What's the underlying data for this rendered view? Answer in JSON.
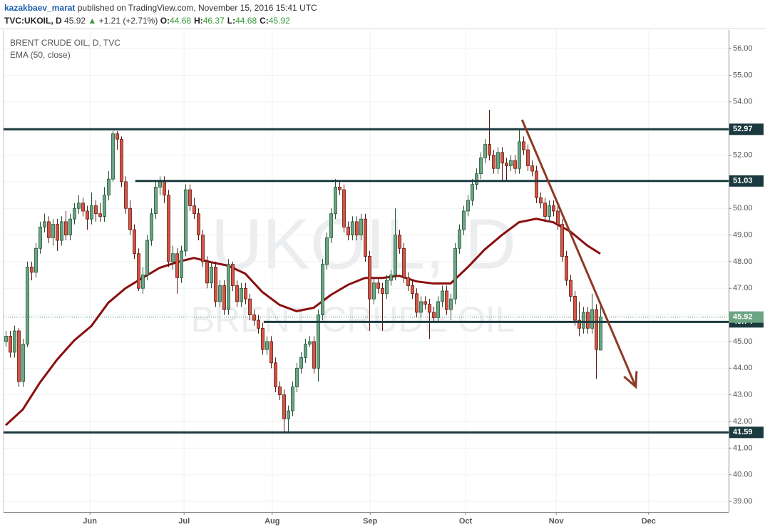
{
  "header": {
    "user": "kazakbaev_marat",
    "published": "published on TradingView.com, November 15, 2016 15:41 UTC",
    "symbol": "TVC:UKOIL, D",
    "price": "45.92",
    "change": "+1.21 (+2.71%)",
    "ohlc": [
      {
        "label": "O:",
        "value": "44.68"
      },
      {
        "label": "H:",
        "value": "46.37"
      },
      {
        "label": "L:",
        "value": "44.68"
      },
      {
        "label": "C:",
        "value": "45.92"
      }
    ]
  },
  "chart_data": {
    "type": "candlestick",
    "title": "BRENT CRUDE OIL, D, TVC",
    "watermark": "UKOIL, D",
    "watermark_subtitle": "BRENT CRUDE OIL",
    "up_color": "#6ba583",
    "down_color": "#d75442",
    "xlim": [
      -0.5,
      169
    ],
    "ylim": [
      38.6,
      56.7
    ],
    "grid": true,
    "xticks": [
      {
        "value": 19.7,
        "label": "Jun"
      },
      {
        "value": 41.7,
        "label": "Jul"
      },
      {
        "value": 62.3,
        "label": "Aug"
      },
      {
        "value": 85.2,
        "label": "Sep"
      },
      {
        "value": 107.5,
        "label": "Oct"
      },
      {
        "value": 128.7,
        "label": "Nov"
      },
      {
        "value": 150.3,
        "label": "Dec"
      }
    ],
    "yticks": [
      {
        "value": 39,
        "label": "39.00"
      },
      {
        "value": 40,
        "label": "40.00"
      },
      {
        "value": 41,
        "label": "41.00"
      },
      {
        "value": 42,
        "label": "42.00"
      },
      {
        "value": 43,
        "label": "43.00"
      },
      {
        "value": 44,
        "label": "44.00"
      },
      {
        "value": 45,
        "label": "45.00"
      },
      {
        "value": 46,
        "label": "46.00"
      },
      {
        "value": 47,
        "label": "47.00"
      },
      {
        "value": 48,
        "label": "48.00"
      },
      {
        "value": 49,
        "label": "49.00"
      },
      {
        "value": 50,
        "label": "50.00"
      },
      {
        "value": 51,
        "label": "51.00"
      },
      {
        "value": 52,
        "label": "52.00"
      },
      {
        "value": 53,
        "label": "53.00"
      },
      {
        "value": 54,
        "label": "54.00"
      },
      {
        "value": 55,
        "label": "55.00"
      },
      {
        "value": 56,
        "label": "56.00"
      }
    ],
    "candles": [
      [
        45.0,
        45.4,
        44.8,
        45.2
      ],
      [
        45.2,
        45.4,
        44.4,
        44.6
      ],
      [
        44.6,
        45.6,
        44.4,
        45.4
      ],
      [
        45.4,
        45.5,
        43.3,
        43.5
      ],
      [
        43.5,
        45.1,
        43.3,
        44.9
      ],
      [
        44.9,
        48.0,
        44.8,
        47.8
      ],
      [
        47.8,
        48.0,
        47.3,
        47.6
      ],
      [
        47.6,
        48.7,
        47.4,
        48.5
      ],
      [
        48.5,
        49.5,
        48.3,
        49.3
      ],
      [
        49.3,
        49.8,
        49.1,
        49.5
      ],
      [
        49.5,
        49.7,
        48.7,
        48.9
      ],
      [
        48.9,
        49.6,
        48.6,
        49.4
      ],
      [
        49.4,
        49.6,
        48.4,
        48.8
      ],
      [
        48.8,
        49.7,
        48.6,
        49.5
      ],
      [
        49.5,
        49.9,
        48.8,
        49.0
      ],
      [
        49.0,
        49.8,
        48.8,
        49.6
      ],
      [
        49.6,
        50.2,
        49.4,
        50.0
      ],
      [
        50.0,
        50.5,
        49.8,
        50.2
      ],
      [
        50.2,
        50.4,
        49.7,
        49.9
      ],
      [
        49.9,
        50.1,
        49.2,
        49.6
      ],
      [
        49.6,
        50.6,
        49.4,
        50.1
      ],
      [
        50.1,
        50.3,
        49.5,
        49.8
      ],
      [
        49.8,
        50.2,
        49.5,
        49.7
      ],
      [
        49.7,
        50.8,
        49.5,
        50.5
      ],
      [
        50.5,
        51.4,
        50.3,
        51.1
      ],
      [
        51.1,
        52.9,
        51.0,
        52.8
      ],
      [
        52.8,
        52.9,
        52.2,
        52.6
      ],
      [
        52.6,
        52.7,
        50.8,
        51.0
      ],
      [
        51.0,
        51.2,
        49.8,
        50.0
      ],
      [
        50.0,
        50.3,
        49.0,
        49.2
      ],
      [
        49.2,
        49.4,
        48.1,
        48.3
      ],
      [
        48.3,
        48.5,
        46.9,
        47.0
      ],
      [
        47.0,
        47.8,
        46.8,
        47.5
      ],
      [
        47.5,
        49.0,
        47.3,
        48.8
      ],
      [
        48.8,
        50.0,
        48.6,
        49.8
      ],
      [
        49.8,
        51.0,
        49.6,
        50.8
      ],
      [
        50.8,
        51.2,
        50.5,
        51.0
      ],
      [
        51.0,
        51.2,
        50.2,
        50.5
      ],
      [
        50.5,
        50.7,
        47.8,
        48.0
      ],
      [
        48.0,
        48.6,
        47.7,
        48.3
      ],
      [
        48.3,
        48.5,
        46.8,
        47.4
      ],
      [
        47.4,
        48.6,
        47.2,
        48.4
      ],
      [
        48.4,
        50.9,
        48.2,
        50.7
      ],
      [
        50.7,
        50.9,
        49.9,
        50.1
      ],
      [
        50.1,
        50.4,
        49.6,
        49.8
      ],
      [
        49.8,
        50.0,
        48.8,
        49.0
      ],
      [
        49.0,
        49.2,
        47.8,
        48.0
      ],
      [
        48.0,
        48.2,
        47.0,
        47.2
      ],
      [
        47.2,
        48.0,
        47.0,
        47.8
      ],
      [
        47.8,
        48.0,
        46.3,
        46.5
      ],
      [
        46.5,
        47.3,
        46.3,
        47.1
      ],
      [
        47.1,
        47.3,
        46.0,
        46.2
      ],
      [
        46.2,
        48.1,
        46.0,
        47.9
      ],
      [
        47.9,
        48.0,
        46.9,
        47.1
      ],
      [
        47.1,
        47.3,
        46.3,
        46.5
      ],
      [
        46.5,
        47.2,
        46.3,
        47.0
      ],
      [
        47.0,
        47.2,
        46.4,
        46.6
      ],
      [
        46.6,
        46.8,
        45.8,
        46.0
      ],
      [
        46.0,
        46.2,
        45.6,
        45.8
      ],
      [
        45.8,
        46.0,
        45.3,
        45.5
      ],
      [
        45.5,
        45.7,
        44.5,
        44.7
      ],
      [
        44.7,
        45.2,
        44.5,
        45.0
      ],
      [
        45.0,
        45.2,
        44.0,
        44.2
      ],
      [
        44.2,
        44.4,
        43.1,
        43.3
      ],
      [
        43.3,
        43.5,
        42.8,
        43.0
      ],
      [
        43.0,
        43.2,
        41.6,
        42.1
      ],
      [
        42.1,
        42.6,
        41.6,
        42.4
      ],
      [
        42.4,
        43.5,
        42.2,
        43.3
      ],
      [
        43.3,
        44.2,
        43.1,
        44.0
      ],
      [
        44.0,
        44.6,
        43.8,
        44.4
      ],
      [
        44.4,
        45.1,
        44.2,
        44.9
      ],
      [
        44.9,
        45.2,
        44.8,
        45.0
      ],
      [
        45.0,
        45.2,
        43.8,
        44.0
      ],
      [
        44.0,
        46.2,
        43.5,
        46.0
      ],
      [
        46.0,
        48.1,
        45.8,
        47.9
      ],
      [
        47.9,
        49.1,
        47.7,
        48.9
      ],
      [
        48.9,
        50.0,
        48.7,
        49.8
      ],
      [
        49.8,
        51.1,
        49.6,
        50.8
      ],
      [
        50.8,
        51.0,
        50.5,
        50.7
      ],
      [
        50.7,
        50.9,
        49.1,
        49.3
      ],
      [
        49.3,
        49.5,
        48.8,
        49.0
      ],
      [
        49.0,
        49.7,
        48.8,
        49.5
      ],
      [
        49.5,
        49.7,
        48.8,
        49.0
      ],
      [
        49.0,
        49.8,
        48.8,
        49.6
      ],
      [
        49.6,
        49.8,
        48.0,
        48.2
      ],
      [
        48.2,
        48.4,
        45.4,
        46.6
      ],
      [
        46.6,
        47.4,
        46.4,
        47.2
      ],
      [
        47.2,
        47.4,
        46.8,
        47.0
      ],
      [
        47.0,
        47.2,
        45.4,
        46.8
      ],
      [
        46.8,
        47.5,
        46.6,
        47.3
      ],
      [
        47.3,
        47.7,
        47.1,
        47.5
      ],
      [
        47.5,
        50.0,
        47.3,
        49.0
      ],
      [
        49.0,
        49.2,
        48.3,
        48.5
      ],
      [
        48.5,
        48.7,
        47.2,
        47.4
      ],
      [
        47.4,
        47.6,
        46.9,
        47.1
      ],
      [
        47.1,
        47.3,
        46.6,
        46.8
      ],
      [
        46.8,
        47.0,
        45.9,
        46.1
      ],
      [
        46.1,
        46.7,
        45.9,
        46.5
      ],
      [
        46.5,
        46.7,
        46.2,
        46.4
      ],
      [
        46.4,
        46.6,
        45.1,
        46.1
      ],
      [
        46.1,
        46.3,
        45.7,
        45.9
      ],
      [
        45.9,
        46.7,
        45.7,
        46.5
      ],
      [
        46.5,
        47.1,
        46.3,
        46.9
      ],
      [
        46.9,
        47.1,
        46.0,
        46.2
      ],
      [
        46.2,
        46.8,
        45.8,
        46.6
      ],
      [
        46.6,
        48.7,
        46.4,
        48.5
      ],
      [
        48.5,
        49.4,
        48.3,
        49.2
      ],
      [
        49.2,
        50.1,
        49.0,
        49.9
      ],
      [
        49.9,
        50.5,
        49.7,
        50.3
      ],
      [
        50.3,
        51.1,
        50.1,
        50.9
      ],
      [
        50.9,
        51.5,
        50.7,
        51.3
      ],
      [
        51.3,
        52.1,
        51.1,
        51.9
      ],
      [
        51.9,
        52.6,
        51.7,
        52.4
      ],
      [
        52.4,
        53.7,
        51.8,
        52.0
      ],
      [
        52.0,
        52.2,
        51.3,
        51.5
      ],
      [
        51.5,
        52.3,
        51.3,
        52.1
      ],
      [
        52.1,
        52.3,
        51.0,
        51.7
      ],
      [
        51.7,
        51.9,
        51.0,
        51.6
      ],
      [
        51.6,
        52.0,
        51.4,
        51.8
      ],
      [
        51.8,
        52.0,
        51.3,
        51.5
      ],
      [
        51.5,
        53.0,
        51.3,
        52.5
      ],
      [
        52.5,
        52.7,
        52.0,
        52.2
      ],
      [
        52.2,
        52.4,
        51.4,
        51.6
      ],
      [
        51.6,
        51.8,
        51.2,
        51.4
      ],
      [
        51.4,
        51.6,
        50.2,
        50.4
      ],
      [
        50.4,
        50.6,
        50.0,
        50.2
      ],
      [
        50.2,
        50.4,
        49.5,
        49.7
      ],
      [
        49.7,
        50.3,
        49.5,
        50.1
      ],
      [
        50.1,
        50.3,
        49.7,
        49.9
      ],
      [
        49.9,
        50.1,
        49.2,
        49.4
      ],
      [
        49.4,
        49.6,
        48.0,
        48.2
      ],
      [
        48.2,
        48.4,
        47.1,
        47.3
      ],
      [
        47.3,
        47.5,
        46.5,
        46.7
      ],
      [
        46.7,
        46.9,
        45.6,
        45.8
      ],
      [
        45.8,
        46.5,
        45.2,
        45.5
      ],
      [
        45.5,
        46.3,
        45.3,
        46.1
      ],
      [
        46.1,
        46.3,
        45.3,
        45.5
      ],
      [
        45.5,
        46.8,
        45.3,
        46.2
      ],
      [
        46.2,
        46.4,
        43.6,
        44.7
      ],
      [
        44.68,
        46.37,
        44.68,
        45.92
      ]
    ],
    "ema": {
      "name": "EMA (50, close)",
      "color": "#8b0f0f",
      "x": [
        0,
        4,
        8,
        12,
        16,
        20,
        24,
        28,
        32,
        36,
        40,
        44,
        48,
        52,
        56,
        60,
        64,
        68,
        72,
        76,
        80,
        84,
        88,
        92,
        96,
        100,
        104,
        108,
        112,
        116,
        120,
        124,
        128,
        132,
        136,
        139
      ],
      "values": [
        41.86,
        42.45,
        43.46,
        44.32,
        45.04,
        45.58,
        46.46,
        47.0,
        47.39,
        47.77,
        47.98,
        48.14,
        47.98,
        47.85,
        47.55,
        46.86,
        46.38,
        46.14,
        46.27,
        46.75,
        47.13,
        47.39,
        47.39,
        47.47,
        47.26,
        47.18,
        47.18,
        47.79,
        48.46,
        49.0,
        49.48,
        49.61,
        49.48,
        49.13,
        48.6,
        48.3
      ]
    },
    "levels": [
      {
        "value": 52.97,
        "x_start": -0.5
      },
      {
        "value": 51.03,
        "x_start": 30.3
      },
      {
        "value": 45.74,
        "x_start": 60.3
      },
      {
        "value": 41.59,
        "x_start": -0.5
      }
    ],
    "last_price": 45.92,
    "trendline": {
      "color": "#8e3a24",
      "x": [
        120.7,
        147.3
      ],
      "y": [
        53.33,
        43.3
      ]
    }
  }
}
